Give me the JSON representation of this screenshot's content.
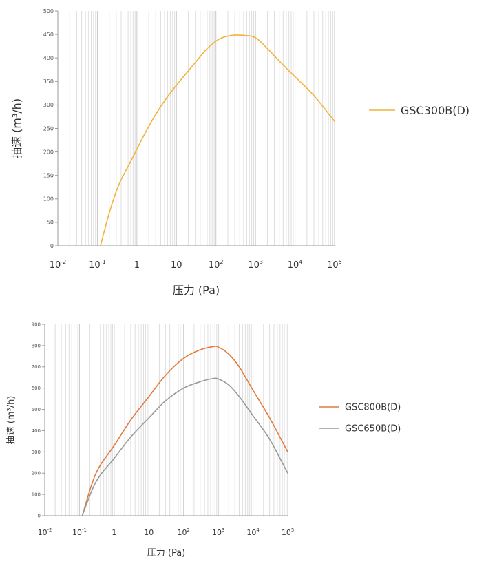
{
  "chart_data": [
    {
      "type": "line",
      "xscale": "log",
      "xlabel": "压力 (Pa)",
      "ylabel": "抽速 (m³/h)",
      "xlim": [
        0.01,
        100000
      ],
      "ylim": [
        0,
        500
      ],
      "x_ticks": [
        {
          "value": 0.01,
          "base": "10",
          "exp": "-2"
        },
        {
          "value": 0.1,
          "base": "10",
          "exp": "-1"
        },
        {
          "value": 1,
          "base": "1",
          "exp": ""
        },
        {
          "value": 10,
          "base": "10",
          "exp": ""
        },
        {
          "value": 100,
          "base": "10",
          "exp": "2"
        },
        {
          "value": 1000,
          "base": "10",
          "exp": "3"
        },
        {
          "value": 10000,
          "base": "10",
          "exp": "4"
        },
        {
          "value": 100000,
          "base": "10",
          "exp": "5"
        }
      ],
      "y_ticks": [
        0,
        50,
        100,
        150,
        200,
        250,
        300,
        350,
        400,
        450,
        500
      ],
      "grid": true,
      "legend_position": "right",
      "series": [
        {
          "name": "GSC300B(D)",
          "color": "#f0b43c",
          "points": [
            [
              0.12,
              0
            ],
            [
              0.2,
              70
            ],
            [
              0.35,
              130
            ],
            [
              0.7,
              180
            ],
            [
              1.5,
              235
            ],
            [
              3,
              280
            ],
            [
              6,
              318
            ],
            [
              12,
              350
            ],
            [
              30,
              390
            ],
            [
              60,
              420
            ],
            [
              120,
              440
            ],
            [
              250,
              448
            ],
            [
              500,
              448
            ],
            [
              1000,
              443
            ],
            [
              2000,
              420
            ],
            [
              5000,
              385
            ],
            [
              10000,
              360
            ],
            [
              30000,
              320
            ],
            [
              100000,
              265
            ]
          ]
        }
      ]
    },
    {
      "type": "line",
      "xscale": "log",
      "xlabel": "压力 (Pa)",
      "ylabel": "抽速 (m³/h)",
      "xlim": [
        0.01,
        100000
      ],
      "ylim": [
        0,
        900
      ],
      "x_ticks": [
        {
          "value": 0.01,
          "base": "10",
          "exp": "-2"
        },
        {
          "value": 0.1,
          "base": "10",
          "exp": "-1"
        },
        {
          "value": 1,
          "base": "1",
          "exp": ""
        },
        {
          "value": 10,
          "base": "10",
          "exp": ""
        },
        {
          "value": 100,
          "base": "10",
          "exp": "2"
        },
        {
          "value": 1000,
          "base": "10",
          "exp": "3"
        },
        {
          "value": 10000,
          "base": "10",
          "exp": "4"
        },
        {
          "value": 100000,
          "base": "10",
          "exp": "5"
        }
      ],
      "y_ticks": [
        0,
        100,
        200,
        300,
        400,
        500,
        600,
        700,
        800,
        900
      ],
      "grid": true,
      "legend_position": "right",
      "series": [
        {
          "name": "GSC800B(D)",
          "color": "#e07a3c",
          "points": [
            [
              0.12,
              0
            ],
            [
              0.3,
              200
            ],
            [
              1,
              330
            ],
            [
              3,
              450
            ],
            [
              10,
              560
            ],
            [
              30,
              660
            ],
            [
              100,
              740
            ],
            [
              300,
              780
            ],
            [
              700,
              795
            ],
            [
              1000,
              793
            ],
            [
              2000,
              760
            ],
            [
              4000,
              700
            ],
            [
              10000,
              590
            ],
            [
              30000,
              460
            ],
            [
              100000,
              300
            ]
          ]
        },
        {
          "name": "GSC650B(D)",
          "color": "#999999",
          "points": [
            [
              0.12,
              0
            ],
            [
              0.3,
              160
            ],
            [
              1,
              270
            ],
            [
              3,
              370
            ],
            [
              10,
              460
            ],
            [
              30,
              540
            ],
            [
              100,
              600
            ],
            [
              300,
              630
            ],
            [
              700,
              645
            ],
            [
              1000,
              643
            ],
            [
              2000,
              615
            ],
            [
              4000,
              560
            ],
            [
              10000,
              470
            ],
            [
              30000,
              360
            ],
            [
              100000,
              200
            ]
          ]
        }
      ]
    }
  ]
}
